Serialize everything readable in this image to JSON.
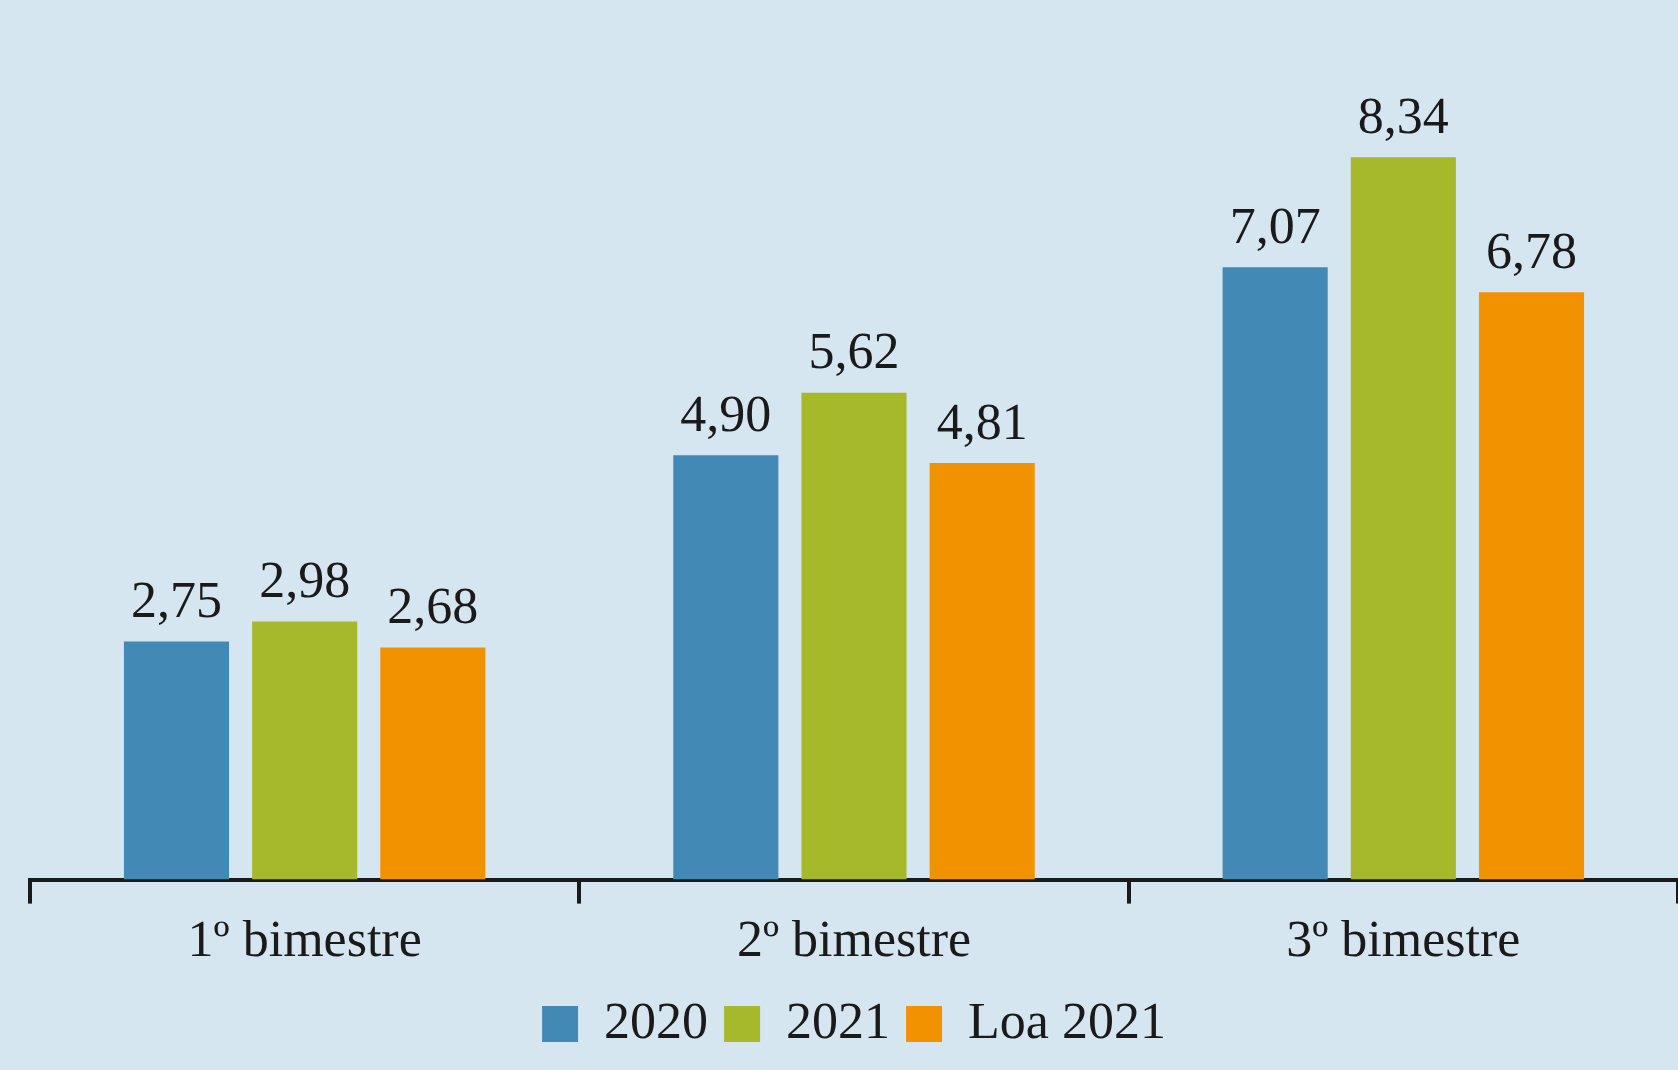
{
  "chart_data": {
    "type": "bar",
    "categories": [
      "1º bimestre",
      "2º bimestre",
      "3º bimestre"
    ],
    "series": [
      {
        "name": "2020",
        "color": "#4389b5",
        "values": [
          2.75,
          4.9,
          7.07
        ],
        "value_labels": [
          "2,75",
          "4,90",
          "7,07"
        ]
      },
      {
        "name": "2021",
        "color": "#a5b92a",
        "values": [
          2.98,
          5.62,
          8.34
        ],
        "value_labels": [
          "2,98",
          "5,62",
          "8,34"
        ]
      },
      {
        "name": "Loa 2021",
        "color": "#f39200",
        "values": [
          2.68,
          4.81,
          6.78
        ],
        "value_labels": [
          "2,68",
          "4,81",
          "6,78"
        ]
      }
    ],
    "legend": "bottom",
    "grid": false,
    "tick_labels": "x"
  }
}
